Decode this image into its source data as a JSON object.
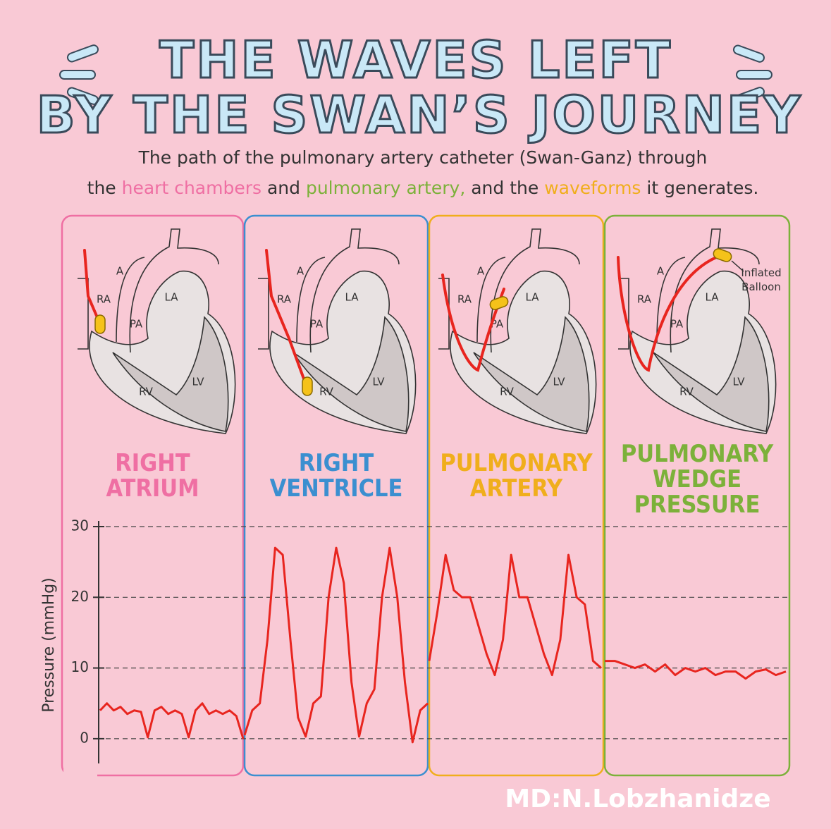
{
  "header": {
    "title_lines": [
      "THE WAVES LEFT",
      "BY THE SWAN’S JOURNEY"
    ],
    "subtitle_line1": "The path of the pulmonary artery catheter (Swan-Ganz) through",
    "subtitle_line2": [
      "the",
      "heart chambers",
      "and",
      "pulmonary artery,",
      "and the",
      "waveforms",
      "it generates."
    ]
  },
  "heart_labels": [
    "A",
    "RA",
    "LA",
    "PA",
    "RV",
    "LV"
  ],
  "balloon_note": [
    "Inflated",
    "Balloon"
  ],
  "panels": [
    {
      "title": [
        "RIGHT",
        "ATRIUM"
      ],
      "color": "#ef6fa3"
    },
    {
      "title": [
        "RIGHT",
        "VENTRICLE"
      ],
      "color": "#3b8fd0"
    },
    {
      "title": [
        "PULMONARY",
        "ARTERY"
      ],
      "color": "#f0ae1c"
    },
    {
      "title": [
        "PULMONARY",
        "WEDGE",
        "PRESSURE"
      ],
      "color": "#7cb13a"
    }
  ],
  "chart_data": {
    "type": "line",
    "y_label": "Pressure (mmHg)",
    "ylim": [
      -3.5,
      30
    ],
    "yticks": [
      0,
      10,
      20,
      30
    ],
    "grid": true,
    "color": "#e8251f",
    "series": [
      {
        "name": "RIGHT ATRIUM",
        "values": [
          4,
          5,
          4,
          4.5,
          3.5,
          4,
          3.8,
          0.2,
          4,
          4.5,
          3.5,
          4,
          3.5,
          0.2,
          4,
          5,
          3.5,
          4,
          3.5,
          4,
          3.2,
          0
        ]
      },
      {
        "name": "RIGHT VENTRICLE",
        "values": [
          0.5,
          4,
          5,
          14,
          27,
          26,
          14,
          3,
          0.3,
          5,
          6,
          20,
          27,
          22,
          8,
          0.3,
          5,
          7,
          20,
          27,
          20,
          8,
          -0.5,
          4,
          5
        ]
      },
      {
        "name": "PULMONARY ARTERY",
        "values": [
          11,
          18,
          26,
          21,
          20,
          20,
          16,
          12,
          9,
          14,
          26,
          20,
          20,
          16,
          12,
          9,
          14,
          26,
          20,
          19,
          11,
          10
        ]
      },
      {
        "name": "PULMONARY WEDGE PRESSURE",
        "values": [
          11,
          11,
          10.5,
          10,
          10.5,
          9.5,
          10.5,
          9,
          10,
          9.5,
          10,
          9,
          9.5,
          9.5,
          8.5,
          9.5,
          9.8,
          9,
          9.5
        ]
      }
    ]
  },
  "credit": "MD:N.Lobzhanidze"
}
